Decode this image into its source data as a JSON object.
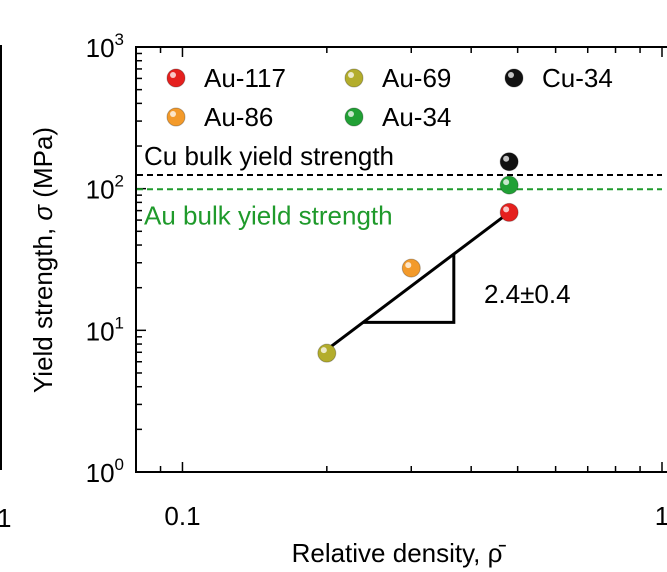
{
  "chart_data": {
    "type": "scatter",
    "title": "",
    "xlabel": "Relative density, ρ̄",
    "ylabel_main": "Yield strength, ",
    "ylabel_symbol": "σ",
    "ylabel_unit": " (MPa)",
    "x_scale": "log",
    "y_scale": "log",
    "xlim": [
      0.08,
      1
    ],
    "ylim": [
      1,
      1000
    ],
    "x_ticks": [
      {
        "value": 0.1,
        "label": "0.1"
      },
      {
        "value": 1,
        "label": "1"
      }
    ],
    "y_ticks": [
      {
        "value": 1,
        "base": "10",
        "exp": "0"
      },
      {
        "value": 10,
        "base": "10",
        "exp": "1"
      },
      {
        "value": 100,
        "base": "10",
        "exp": "2"
      },
      {
        "value": 1000,
        "base": "10",
        "exp": "3"
      }
    ],
    "left_edge_label": "1",
    "grid": false,
    "legend_position": "top-right",
    "series": [
      {
        "name": "Au-117",
        "color": "#e5201e",
        "points": [
          {
            "x": 0.48,
            "y": 68,
            "err": 5
          }
        ]
      },
      {
        "name": "Au-69",
        "color": "#b3ad2c",
        "points": [
          {
            "x": 0.2,
            "y": 6.9,
            "err": 0.7
          }
        ]
      },
      {
        "name": "Cu-34",
        "color": "#111111",
        "points": [
          {
            "x": 0.48,
            "y": 155,
            "err": 12
          }
        ]
      },
      {
        "name": "Au-86",
        "color": "#f39a2a",
        "points": [
          {
            "x": 0.3,
            "y": 27.5,
            "err": 2.5
          }
        ]
      },
      {
        "name": "Au-34",
        "color": "#21a035",
        "points": [
          {
            "x": 0.48,
            "y": 106,
            "err": 10
          }
        ]
      }
    ],
    "reference_lines": [
      {
        "label": "Cu bulk yield strength",
        "y": 125,
        "color": "#000000",
        "style": "dashed"
      },
      {
        "label": "Au bulk yield strength",
        "y": 99,
        "color": "#1f9a2b",
        "style": "dashed"
      }
    ],
    "fit_line": {
      "x": [
        0.2,
        0.48
      ],
      "y": [
        7.3,
        68
      ]
    },
    "slope_label": "2.4±0.4"
  }
}
